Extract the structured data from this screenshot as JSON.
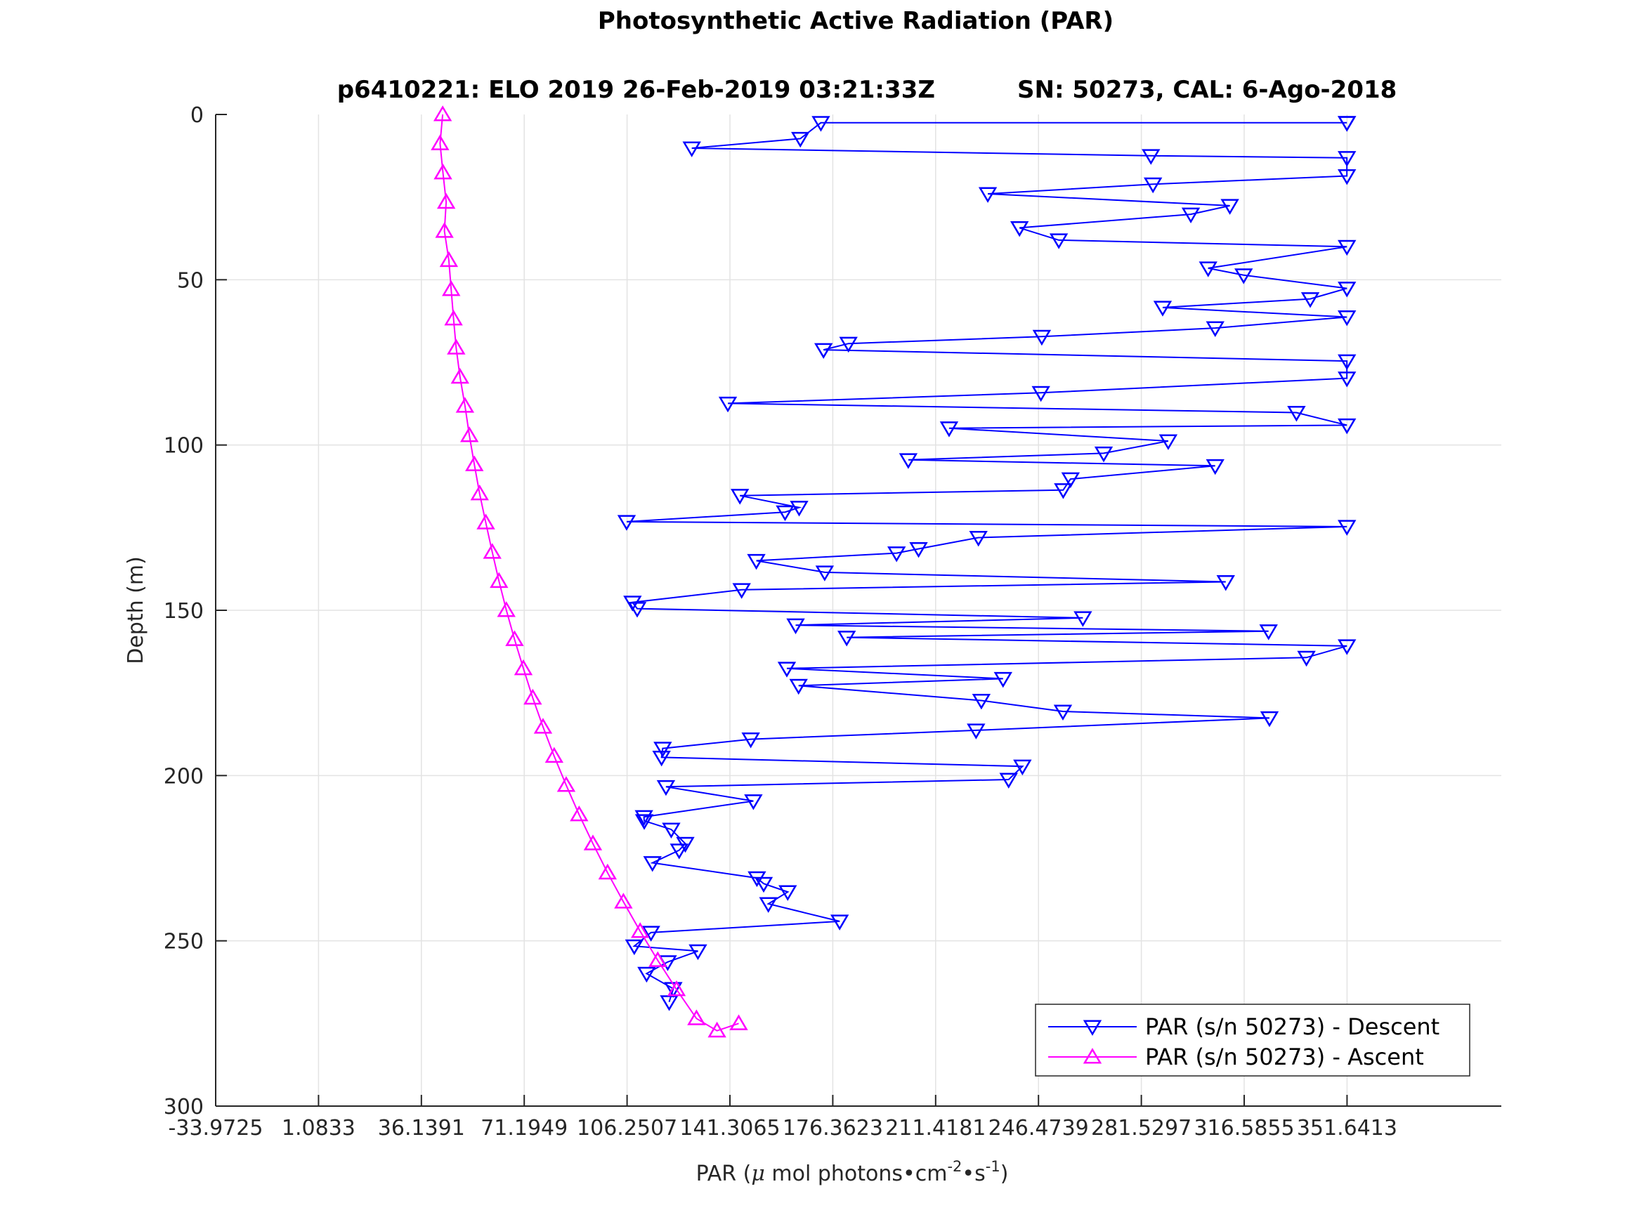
{
  "chart_data": {
    "type": "line",
    "title": "Photosynthetic Active Radiation (PAR)",
    "subtitle_left": "p6410221: ELO 2019 26-Feb-2019 03:21:33Z",
    "subtitle_right": "SN: 50273, CAL: 6-Ago-2018",
    "xlabel": {
      "prefix": "PAR (",
      "mu": "μ",
      "mid": " mol photons",
      "dot1": "•",
      "cm": "cm",
      "exp1": "-2",
      "dot2": "•",
      "s": "s",
      "exp2": "-1",
      "suffix": ")"
    },
    "ylabel": "Depth (m)",
    "xlim": [
      -33.9725,
      404.22
    ],
    "ylim": [
      0,
      300
    ],
    "y_reversed": true,
    "grid": true,
    "legend_location": "bottom-right",
    "xticks": [
      -33.9725,
      1.0833,
      36.1391,
      71.1949,
      106.2507,
      141.3065,
      176.3623,
      211.4181,
      246.4739,
      281.5297,
      316.5855,
      351.6413
    ],
    "xtick_labels": [
      "-33.9725",
      "1.0833",
      "36.1391",
      "71.1949",
      "106.2507",
      "141.3065",
      "176.3623",
      "211.4181",
      "246.4739",
      "281.5297",
      "316.5855",
      "351.6413"
    ],
    "yticks": [
      0,
      50,
      100,
      150,
      200,
      250,
      300
    ],
    "ytick_labels": [
      "0",
      "50",
      "100",
      "150",
      "200",
      "250",
      "300"
    ],
    "colors": {
      "descent": "#0000ff",
      "ascent": "#ff00ff",
      "grid": "#e3e3e3",
      "axes": "#262626"
    },
    "series": [
      {
        "name": "PAR (s/n 50273) - Descent",
        "marker": "triangle-down",
        "x": [
          351.6,
          351.6,
          172.3,
          165.3,
          128.3,
          284.8,
          351.6,
          351.6,
          285.5,
          229.2,
          311.7,
          298.4,
          240.0,
          253.4,
          351.6,
          304.3,
          316.4,
          351.6,
          339.1,
          288.8,
          351.6,
          306.7,
          247.6,
          181.7,
          173.2,
          351.6,
          351.6,
          247.3,
          140.6,
          334.4,
          351.6,
          216.0,
          290.7,
          268.7,
          202.1,
          306.7,
          257.4,
          254.9,
          144.7,
          164.9,
          160.1,
          106.1,
          351.6,
          226.0,
          205.6,
          198.1,
          150.3,
          173.6,
          310.3,
          145.3,
          108.1,
          109.7,
          261.6,
          163.7,
          324.9,
          181.1,
          351.6,
          337.8,
          160.7,
          234.4,
          164.7,
          227.0,
          254.8,
          325.2,
          225.2,
          148.4,
          118.4,
          118.0,
          241.0,
          236.3,
          119.5,
          149.3,
          112.0,
          112.1,
          121.3,
          126.1,
          124.0,
          114.9,
          150.5,
          152.8,
          161.0,
          154.4,
          178.7,
          114.4,
          108.7,
          130.4,
          120.1,
          112.9,
          122.0,
          120.6
        ],
        "y": [
          2.5,
          2.5,
          2.5,
          7.3,
          10.2,
          12.5,
          13.1,
          18.6,
          21.1,
          24.0,
          27.6,
          30.2,
          34.3,
          38.0,
          40.0,
          46.5,
          48.6,
          52.6,
          55.8,
          58.4,
          61.3,
          64.6,
          67.2,
          69.3,
          71.2,
          74.6,
          79.8,
          84.2,
          87.4,
          90.2,
          94.0,
          94.9,
          98.8,
          102.5,
          104.5,
          106.3,
          110.3,
          113.6,
          115.3,
          118.9,
          120.3,
          123.2,
          124.7,
          128.0,
          131.4,
          132.7,
          135.0,
          138.5,
          141.4,
          143.8,
          147.6,
          149.5,
          152.3,
          154.5,
          156.3,
          158.2,
          160.8,
          164.3,
          167.6,
          170.7,
          172.8,
          177.3,
          180.6,
          182.6,
          186.3,
          189.0,
          191.8,
          194.5,
          197.2,
          201.2,
          203.4,
          207.7,
          212.5,
          213.7,
          216.3,
          220.6,
          222.6,
          226.4,
          231.0,
          232.7,
          235.2,
          238.8,
          244.1,
          247.5,
          251.6,
          253.1,
          256.4,
          259.9,
          264.5,
          268.5
        ]
      },
      {
        "name": "PAR (s/n 50273) - Ascent",
        "marker": "triangle-up",
        "x": [
          43.4,
          42.5,
          43.5,
          44.6,
          44.0,
          45.5,
          46.3,
          47.1,
          48.0,
          49.3,
          51.0,
          52.5,
          54.2,
          56.0,
          58.1,
          60.3,
          62.6,
          65.1,
          67.9,
          70.9,
          74.1,
          77.6,
          81.4,
          85.5,
          89.9,
          94.6,
          99.6,
          105.0,
          110.7,
          116.7,
          123.1,
          129.9,
          136.9,
          144.3
        ],
        "y": [
          0.0,
          8.8,
          17.6,
          26.5,
          35.3,
          44.1,
          52.9,
          61.8,
          70.6,
          79.4,
          88.2,
          97.1,
          105.9,
          114.7,
          123.5,
          132.4,
          141.2,
          150.0,
          158.8,
          167.6,
          176.5,
          185.3,
          194.1,
          202.9,
          211.8,
          220.6,
          229.4,
          238.2,
          247.1,
          255.9,
          264.7,
          273.5,
          277.2,
          275.0
        ]
      }
    ]
  }
}
